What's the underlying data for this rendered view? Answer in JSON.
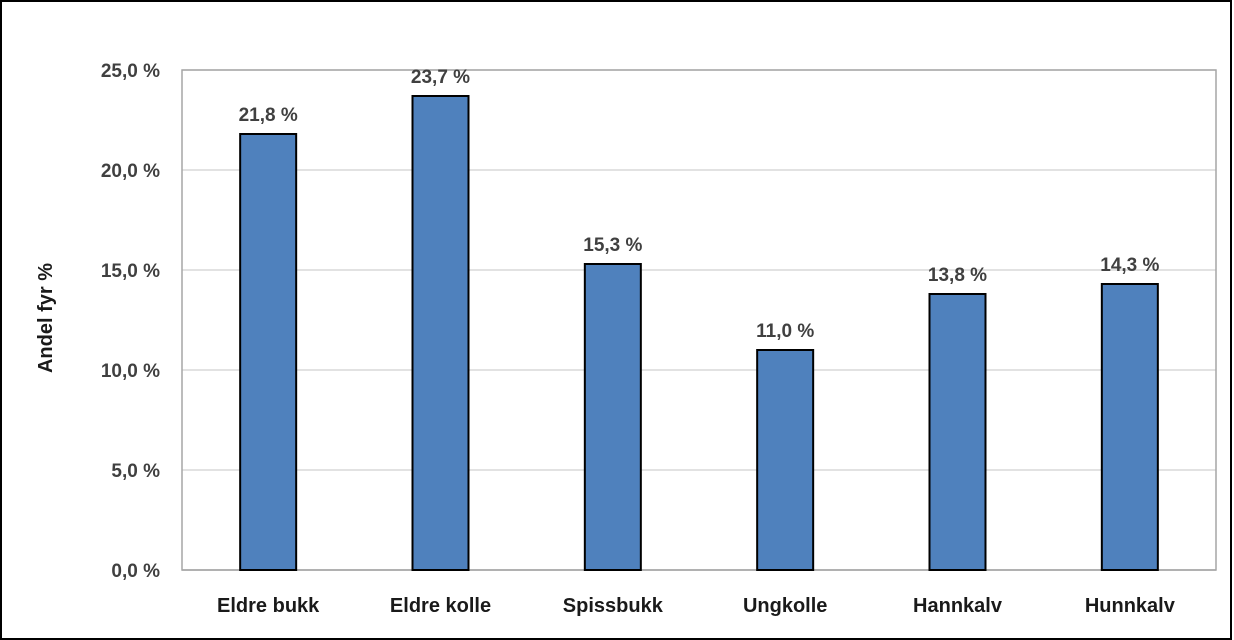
{
  "chart_data": {
    "type": "bar",
    "categories": [
      "Eldre bukk",
      "Eldre kolle",
      "Spissbukk",
      "Ungkolle",
      "Hannkalv",
      "Hunnkalv"
    ],
    "values": [
      21.8,
      23.7,
      15.3,
      11.0,
      13.8,
      14.3
    ],
    "data_labels": [
      "21,8 %",
      "23,7 %",
      "15,3 %",
      "11,0 %",
      "13,8 %",
      "14,3 %"
    ],
    "ylabel": "Andel fyr %",
    "ylim": [
      0,
      25
    ],
    "yticks": [
      0,
      5,
      10,
      15,
      20,
      25
    ],
    "ytick_labels": [
      "0,0 %",
      "5,0 %",
      "10,0 %",
      "15,0 %",
      "20,0 %",
      "25,0 %"
    ],
    "grid": true,
    "bar_color": "#4f81bd",
    "gridline_color": "#d9d9d9"
  }
}
